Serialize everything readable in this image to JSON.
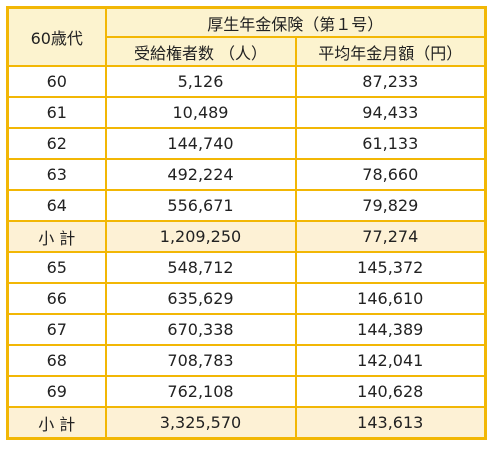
{
  "table": {
    "corner_label": "60歳代",
    "group_header": "厚生年金保険（第１号）",
    "col_headers": [
      "受給権者数 （人）",
      "平均年金月額（円）"
    ],
    "rows": [
      {
        "label": "60",
        "recipients": "5,126",
        "avg_monthly": "87,233",
        "subtotal": false
      },
      {
        "label": "61",
        "recipients": "10,489",
        "avg_monthly": "94,433",
        "subtotal": false
      },
      {
        "label": "62",
        "recipients": "144,740",
        "avg_monthly": "61,133",
        "subtotal": false
      },
      {
        "label": "63",
        "recipients": "492,224",
        "avg_monthly": "78,660",
        "subtotal": false
      },
      {
        "label": "64",
        "recipients": "556,671",
        "avg_monthly": "79,829",
        "subtotal": false
      },
      {
        "label": "小 計",
        "recipients": "1,209,250",
        "avg_monthly": "77,274",
        "subtotal": true
      },
      {
        "label": "65",
        "recipients": "548,712",
        "avg_monthly": "145,372",
        "subtotal": false
      },
      {
        "label": "66",
        "recipients": "635,629",
        "avg_monthly": "146,610",
        "subtotal": false
      },
      {
        "label": "67",
        "recipients": "670,338",
        "avg_monthly": "144,389",
        "subtotal": false
      },
      {
        "label": "68",
        "recipients": "708,783",
        "avg_monthly": "142,041",
        "subtotal": false
      },
      {
        "label": "69",
        "recipients": "762,108",
        "avg_monthly": "140,628",
        "subtotal": false
      },
      {
        "label": "小 計",
        "recipients": "3,325,570",
        "avg_monthly": "143,613",
        "subtotal": true
      }
    ]
  },
  "colors": {
    "border": "#f2b705",
    "header_bg": "#fcf3cf",
    "subtotal_bg": "#fdf1d5"
  }
}
